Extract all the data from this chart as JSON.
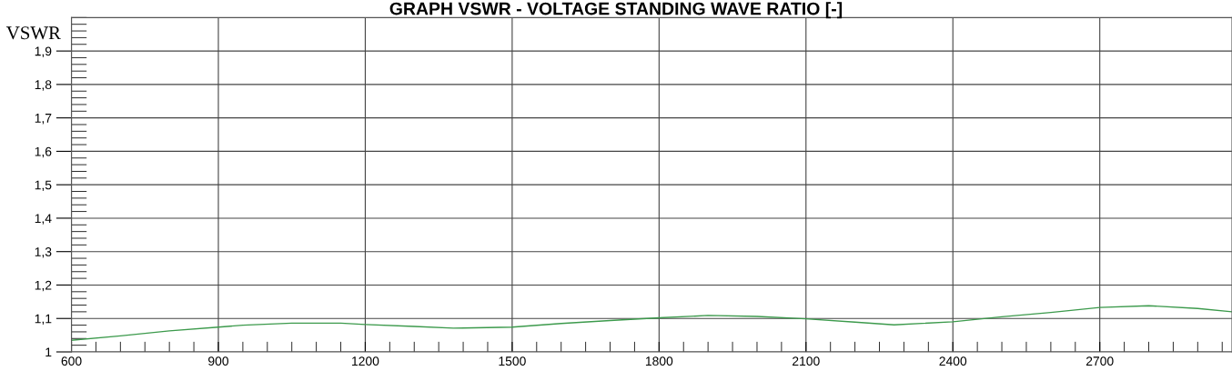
{
  "chart_data": {
    "type": "line",
    "title": "GRAPH VSWR - VOLTAGE STANDING WAVE RATIO [-]",
    "ylabel": "VSWR",
    "x": [
      600,
      700,
      800,
      900,
      950,
      1050,
      1150,
      1200,
      1300,
      1380,
      1500,
      1600,
      1700,
      1800,
      1900,
      2000,
      2100,
      2200,
      2280,
      2400,
      2500,
      2600,
      2700,
      2800,
      2900,
      2970
    ],
    "series": [
      {
        "color": "#3c9a4c",
        "values": [
          1.035,
          1.048,
          1.063,
          1.074,
          1.08,
          1.086,
          1.086,
          1.082,
          1.076,
          1.071,
          1.074,
          1.085,
          1.094,
          1.102,
          1.109,
          1.106,
          1.099,
          1.089,
          1.081,
          1.09,
          1.105,
          1.118,
          1.133,
          1.138,
          1.13,
          1.12
        ]
      }
    ],
    "xlim": [
      600,
      2970
    ],
    "ylim": [
      1,
      2.0
    ],
    "xticks": [
      600,
      900,
      1200,
      1500,
      1800,
      2100,
      2400,
      2700
    ],
    "yticks": [
      1,
      {
        "value": 1.1,
        "label": "1,1"
      },
      {
        "value": 1.2,
        "label": "1,2"
      },
      {
        "value": 1.3,
        "label": "1,3"
      },
      {
        "value": 1.4,
        "label": "1,4"
      },
      {
        "value": 1.5,
        "label": "1,5"
      },
      {
        "value": 1.6,
        "label": "1,6"
      },
      {
        "value": 1.7,
        "label": "1,7"
      },
      {
        "value": 1.8,
        "label": "1,8"
      },
      {
        "value": 1.9,
        "label": "1,9"
      }
    ],
    "grid": true,
    "legend": false,
    "marker": "none",
    "line_style": "solid"
  }
}
